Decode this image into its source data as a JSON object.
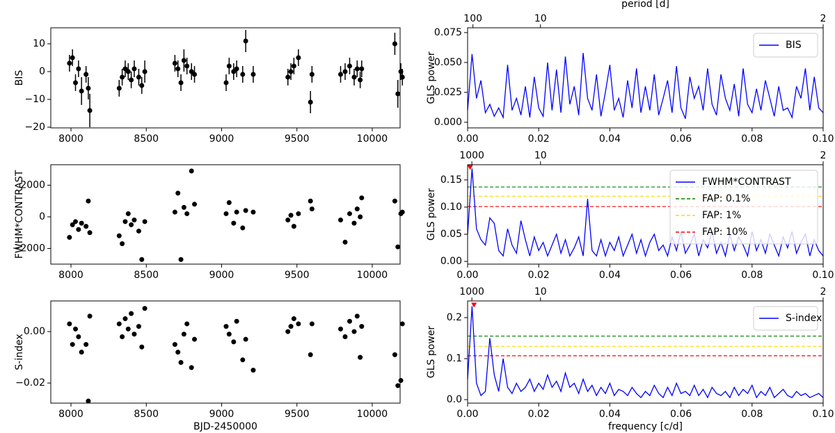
{
  "chart_data": [
    {
      "type": "scatter",
      "ylabel": "BIS",
      "color": "#000000",
      "x": [
        7990,
        8010,
        8030,
        8050,
        8070,
        8100,
        8115,
        8125,
        8320,
        8340,
        8360,
        8380,
        8400,
        8420,
        8450,
        8470,
        8490,
        8690,
        8710,
        8730,
        8750,
        8770,
        8800,
        8820,
        9030,
        9050,
        9080,
        9100,
        9140,
        9160,
        9210,
        9440,
        9460,
        9480,
        9510,
        9590,
        9600,
        9790,
        9820,
        9850,
        9880,
        9900,
        9920,
        9930,
        10150,
        10170,
        10190,
        10200
      ],
      "values": [
        3,
        5,
        -4,
        1,
        -7,
        -1,
        -6,
        -14,
        -6,
        -2,
        1,
        0,
        -3,
        1,
        -2,
        -5,
        0,
        3,
        1,
        -4,
        4,
        2,
        0,
        -1,
        -4,
        2,
        0,
        1,
        -1,
        11,
        -1,
        -2,
        0,
        2,
        5,
        -11,
        -1,
        -1,
        0,
        2,
        -2,
        1,
        -3,
        1,
        10,
        -8,
        0,
        -2
      ],
      "errors": [
        3,
        3,
        3,
        3,
        5,
        3,
        4,
        6,
        3,
        3,
        3,
        3,
        3,
        3,
        3,
        3,
        4,
        3,
        3,
        3,
        4,
        3,
        3,
        3,
        3,
        3,
        3,
        3,
        3,
        4,
        3,
        3,
        3,
        3,
        3,
        4,
        3,
        3,
        3,
        3,
        3,
        3,
        3,
        3,
        4,
        5,
        3,
        3
      ],
      "xlim": [
        7866,
        10185
      ],
      "xticks": [
        8000,
        8500,
        9000,
        9500,
        10000
      ],
      "ylim": [
        -20.25,
        15.75
      ],
      "yticks": [
        {
          "value": -20,
          "label": "−20"
        },
        {
          "value": -10,
          "label": "−10"
        },
        0,
        10
      ]
    },
    {
      "type": "line",
      "ylabel": "GLS power",
      "x2label": "period [d]",
      "legend": "upper right",
      "x": [
        0,
        0.00125,
        0.0025,
        0.00375,
        0.005,
        0.00625,
        0.0075,
        0.00875,
        0.01,
        0.01125,
        0.0125,
        0.01375,
        0.015,
        0.01625,
        0.0175,
        0.01875,
        0.02,
        0.02125,
        0.0225,
        0.02375,
        0.025,
        0.02625,
        0.0275,
        0.02875,
        0.03,
        0.03125,
        0.0325,
        0.03375,
        0.035,
        0.03625,
        0.0375,
        0.03875,
        0.04,
        0.04125,
        0.0425,
        0.04375,
        0.045,
        0.04625,
        0.0475,
        0.04875,
        0.05,
        0.05125,
        0.0525,
        0.05375,
        0.055,
        0.05625,
        0.0575,
        0.05875,
        0.06,
        0.06125,
        0.0625,
        0.06375,
        0.065,
        0.06625,
        0.0675,
        0.06875,
        0.07,
        0.07125,
        0.0725,
        0.07375,
        0.075,
        0.07625,
        0.0775,
        0.07875,
        0.08,
        0.08125,
        0.0825,
        0.08375,
        0.085,
        0.08625,
        0.0875,
        0.08875,
        0.09,
        0.09125,
        0.0925,
        0.09375,
        0.095,
        0.09625,
        0.0975,
        0.09875,
        0.1
      ],
      "series": [
        {
          "name": "BIS",
          "color": "#0000ff",
          "values": [
            0.01,
            0.057,
            0.02,
            0.035,
            0.008,
            0.015,
            0.005,
            0.012,
            0.004,
            0.048,
            0.01,
            0.02,
            0.006,
            0.03,
            0.004,
            0.038,
            0.012,
            0.005,
            0.05,
            0.01,
            0.044,
            0.008,
            0.055,
            0.015,
            0.03,
            0.006,
            0.058,
            0.02,
            0.01,
            0.04,
            0.005,
            0.025,
            0.048,
            0.01,
            0.02,
            0.004,
            0.035,
            0.012,
            0.045,
            0.008,
            0.03,
            0.01,
            0.04,
            0.006,
            0.02,
            0.035,
            0.008,
            0.047,
            0.012,
            0.003,
            0.038,
            0.02,
            0.03,
            0.01,
            0.045,
            0.015,
            0.006,
            0.04,
            0.02,
            0.01,
            0.032,
            0.005,
            0.045,
            0.015,
            0.008,
            0.028,
            0.01,
            0.035,
            0.02,
            0.005,
            0.03,
            0.01,
            0.012,
            0.004,
            0.03,
            0.02,
            0.045,
            0.01,
            0.038,
            0.012,
            0.008
          ]
        }
      ],
      "xlim": [
        0,
        0.1
      ],
      "xticks": [
        {
          "value": 0,
          "label": "0.00"
        },
        0.02,
        0.04,
        0.06,
        0.08,
        {
          "value": 0.1,
          "label": "0.10"
        }
      ],
      "x2ticks": [
        {
          "value": 0.0015,
          "label": "100"
        },
        {
          "value": 0.0205,
          "label": "10"
        },
        {
          "value": 0.1,
          "label": "2"
        }
      ],
      "ylim": [
        -0.0047,
        0.079
      ],
      "yticks": [
        {
          "value": 0,
          "label": "0.000"
        },
        0.025,
        {
          "value": 0.05,
          "label": "0.050"
        },
        0.075
      ]
    },
    {
      "type": "scatter",
      "ylabel": "FWHM*CONTRAST",
      "color": "#000000",
      "x": [
        7990,
        8010,
        8030,
        8050,
        8070,
        8100,
        8115,
        8125,
        8320,
        8340,
        8360,
        8380,
        8400,
        8420,
        8450,
        8470,
        8490,
        8690,
        8710,
        8730,
        8750,
        8770,
        8800,
        8820,
        9030,
        9050,
        9080,
        9100,
        9140,
        9160,
        9210,
        9440,
        9460,
        9480,
        9510,
        9590,
        9600,
        9790,
        9820,
        9850,
        9880,
        9900,
        9920,
        9930,
        10150,
        10170,
        10190,
        10200
      ],
      "values": [
        -1300,
        -500,
        -300,
        -800,
        -400,
        -600,
        1000,
        -1000,
        -1200,
        -1700,
        -300,
        200,
        -500,
        -200,
        -900,
        -2700,
        -300,
        300,
        1500,
        -2700,
        600,
        200,
        2900,
        800,
        200,
        900,
        -400,
        300,
        -700,
        400,
        300,
        -200,
        100,
        -600,
        200,
        1000,
        500,
        -200,
        -1600,
        200,
        -400,
        500,
        0,
        1200,
        1000,
        -1900,
        200,
        300
      ],
      "xlim": [
        7866,
        10185
      ],
      "xticks": [
        8000,
        8500,
        9000,
        9500,
        10000
      ],
      "ylim": [
        -2990,
        3297
      ],
      "yticks": [
        {
          "value": -2000,
          "label": "−2000"
        },
        0,
        2000
      ]
    },
    {
      "type": "line",
      "ylabel": "GLS power",
      "legend": "upper right",
      "x": [
        0,
        0.00125,
        0.0025,
        0.00375,
        0.005,
        0.00625,
        0.0075,
        0.00875,
        0.01,
        0.01125,
        0.0125,
        0.01375,
        0.015,
        0.01625,
        0.0175,
        0.01875,
        0.02,
        0.02125,
        0.0225,
        0.02375,
        0.025,
        0.02625,
        0.0275,
        0.02875,
        0.03,
        0.03125,
        0.0325,
        0.03375,
        0.035,
        0.03625,
        0.0375,
        0.03875,
        0.04,
        0.04125,
        0.0425,
        0.04375,
        0.045,
        0.04625,
        0.0475,
        0.04875,
        0.05,
        0.05125,
        0.0525,
        0.05375,
        0.055,
        0.05625,
        0.0575,
        0.05875,
        0.06,
        0.06125,
        0.0625,
        0.06375,
        0.065,
        0.06625,
        0.0675,
        0.06875,
        0.07,
        0.07125,
        0.0725,
        0.07375,
        0.075,
        0.07625,
        0.0775,
        0.07875,
        0.08,
        0.08125,
        0.0825,
        0.08375,
        0.085,
        0.08625,
        0.0875,
        0.08875,
        0.09,
        0.09125,
        0.0925,
        0.09375,
        0.095,
        0.09625,
        0.0975,
        0.09875,
        0.1
      ],
      "series": [
        {
          "name": "FWHM*CONTRAST",
          "color": "#0000ff",
          "values": [
            0.05,
            0.171,
            0.06,
            0.04,
            0.03,
            0.08,
            0.07,
            0.02,
            0.01,
            0.06,
            0.03,
            0.015,
            0.075,
            0.04,
            0.01,
            0.045,
            0.02,
            0.035,
            0.01,
            0.03,
            0.05,
            0.015,
            0.04,
            0.01,
            0.025,
            0.045,
            0.01,
            0.115,
            0.02,
            0.01,
            0.04,
            0.01,
            0.035,
            0.02,
            0.045,
            0.01,
            0.03,
            0.05,
            0.015,
            0.04,
            0.01,
            0.035,
            0.05,
            0.02,
            0.03,
            0.01,
            0.045,
            0.02,
            0.055,
            0.015,
            0.03,
            0.05,
            0.01,
            0.04,
            0.025,
            0.055,
            0.015,
            0.035,
            0.01,
            0.05,
            0.02,
            0.045,
            0.03,
            0.01,
            0.055,
            0.02,
            0.04,
            0.015,
            0.05,
            0.03,
            0.01,
            0.045,
            0.025,
            0.055,
            0.015,
            0.035,
            0.05,
            0.01,
            0.04,
            0.02,
            0.01
          ]
        }
      ],
      "hlines": [
        {
          "name": "FAP: 0.1%",
          "value": 0.137,
          "color": "#008000"
        },
        {
          "name": "FAP: 1%",
          "value": 0.12,
          "color": "#ffd700"
        },
        {
          "name": "FAP: 10%",
          "value": 0.101,
          "color": "#ff0000"
        }
      ],
      "peak": {
        "x": 0.0007,
        "y": 0.171,
        "color": "#ff0000"
      },
      "xlim": [
        0,
        0.1
      ],
      "xticks": [
        {
          "value": 0,
          "label": "0.00"
        },
        0.02,
        0.04,
        0.06,
        0.08,
        {
          "value": 0.1,
          "label": "0.10"
        }
      ],
      "x2ticks": [
        {
          "value": 0.0012,
          "label": "1000"
        },
        {
          "value": 0.0205,
          "label": "10"
        },
        {
          "value": 0.1,
          "label": "2"
        }
      ],
      "ylim": [
        -0.005,
        0.178
      ],
      "yticks": [
        {
          "value": 0,
          "label": "0.00"
        },
        0.05,
        {
          "value": 0.1,
          "label": "0.10"
        },
        0.15
      ]
    },
    {
      "type": "scatter",
      "ylabel": "S-index",
      "xlabel": "BJD-2450000",
      "color": "#000000",
      "x": [
        7990,
        8010,
        8030,
        8050,
        8070,
        8100,
        8115,
        8125,
        8320,
        8340,
        8360,
        8380,
        8400,
        8420,
        8450,
        8470,
        8490,
        8690,
        8710,
        8730,
        8750,
        8770,
        8800,
        8820,
        9030,
        9050,
        9080,
        9100,
        9140,
        9160,
        9210,
        9440,
        9460,
        9480,
        9510,
        9590,
        9600,
        9790,
        9820,
        9850,
        9880,
        9900,
        9920,
        9930,
        10150,
        10170,
        10190,
        10200
      ],
      "values": [
        0.003,
        -0.005,
        0.001,
        -0.002,
        -0.008,
        -0.005,
        -0.027,
        0.006,
        0.003,
        -0.002,
        0.005,
        0.001,
        0.007,
        -0.001,
        0.002,
        -0.006,
        0.009,
        -0.005,
        -0.008,
        -0.012,
        -0.001,
        0.003,
        -0.014,
        -0.003,
        0.002,
        -0.001,
        -0.004,
        0.004,
        -0.011,
        -0.003,
        -0.015,
        0.0,
        0.002,
        0.005,
        0.003,
        -0.009,
        0.003,
        0.001,
        -0.002,
        0.004,
        0.0,
        0.006,
        -0.01,
        0.002,
        -0.009,
        -0.021,
        -0.019,
        0.003
      ],
      "xlim": [
        7866,
        10185
      ],
      "xticks": [
        8000,
        8500,
        9000,
        9500,
        10000
      ],
      "ylim": [
        -0.0278,
        0.0119
      ],
      "yticks": [
        {
          "value": -0.02,
          "label": "−0.02"
        },
        {
          "value": 0,
          "label": "0.00"
        }
      ]
    },
    {
      "type": "line",
      "ylabel": "GLS power",
      "xlabel": "frequency [c/d]",
      "legend": "upper right",
      "x": [
        0,
        0.00125,
        0.0025,
        0.00375,
        0.005,
        0.00625,
        0.0075,
        0.00875,
        0.01,
        0.01125,
        0.0125,
        0.01375,
        0.015,
        0.01625,
        0.0175,
        0.01875,
        0.02,
        0.02125,
        0.0225,
        0.02375,
        0.025,
        0.02625,
        0.0275,
        0.02875,
        0.03,
        0.03125,
        0.0325,
        0.03375,
        0.035,
        0.03625,
        0.0375,
        0.03875,
        0.04,
        0.04125,
        0.0425,
        0.04375,
        0.045,
        0.04625,
        0.0475,
        0.04875,
        0.05,
        0.05125,
        0.0525,
        0.05375,
        0.055,
        0.05625,
        0.0575,
        0.05875,
        0.06,
        0.06125,
        0.0625,
        0.06375,
        0.065,
        0.06625,
        0.0675,
        0.06875,
        0.07,
        0.07125,
        0.0725,
        0.07375,
        0.075,
        0.07625,
        0.0775,
        0.07875,
        0.08,
        0.08125,
        0.0825,
        0.08375,
        0.085,
        0.08625,
        0.0875,
        0.08875,
        0.09,
        0.09125,
        0.0925,
        0.09375,
        0.095,
        0.09625,
        0.0975,
        0.09875,
        0.1
      ],
      "series": [
        {
          "name": "S-index",
          "color": "#0000ff",
          "values": [
            0.05,
            0.228,
            0.04,
            0.01,
            0.02,
            0.15,
            0.06,
            0.02,
            0.1,
            0.03,
            0.015,
            0.04,
            0.02,
            0.03,
            0.05,
            0.02,
            0.04,
            0.025,
            0.06,
            0.03,
            0.045,
            0.02,
            0.065,
            0.03,
            0.04,
            0.015,
            0.05,
            0.02,
            0.035,
            0.01,
            0.03,
            0.015,
            0.04,
            0.01,
            0.025,
            0.02,
            0.01,
            0.03,
            0.015,
            0.005,
            0.02,
            0.01,
            0.035,
            0.015,
            0.005,
            0.03,
            0.01,
            0.04,
            0.015,
            0.02,
            0.01,
            0.035,
            0.01,
            0.025,
            0.005,
            0.03,
            0.015,
            0.01,
            0.02,
            0.005,
            0.03,
            0.01,
            0.025,
            0.015,
            0.035,
            0.005,
            0.02,
            0.01,
            0.03,
            0.005,
            0.015,
            0.025,
            0.01,
            0.005,
            0.02,
            0.01,
            0.015,
            0.005,
            0.01,
            0.015,
            0.005
          ]
        }
      ],
      "hlines": [
        {
          "value": 0.155,
          "color": "#008000"
        },
        {
          "value": 0.13,
          "color": "#ffd700"
        },
        {
          "value": 0.107,
          "color": "#ff0000"
        }
      ],
      "peak": {
        "x": 0.0018,
        "y": 0.228,
        "color": "#ff0000"
      },
      "xlim": [
        0,
        0.1
      ],
      "xticks": [
        {
          "value": 0,
          "label": "0.00"
        },
        0.02,
        0.04,
        0.06,
        0.08,
        {
          "value": 0.1,
          "label": "0.10"
        }
      ],
      "x2ticks": [
        {
          "value": 0.0012,
          "label": "1000"
        },
        {
          "value": 0.0205,
          "label": "10"
        },
        {
          "value": 0.1,
          "label": "2"
        }
      ],
      "ylim": [
        -0.0085,
        0.2407
      ],
      "yticks": [
        {
          "value": 0,
          "label": "0.0"
        },
        0.1,
        0.2
      ]
    }
  ]
}
